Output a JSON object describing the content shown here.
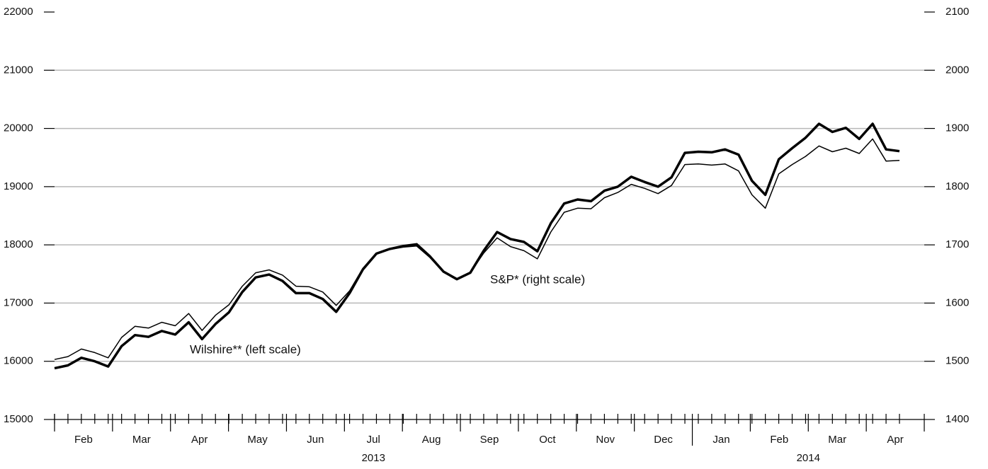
{
  "chart_data": {
    "type": "line",
    "categories": [
      null,
      null,
      null,
      null,
      null,
      null,
      null,
      null,
      null,
      null,
      null,
      null,
      null,
      null,
      null,
      null,
      null,
      null,
      null,
      null,
      null,
      null,
      null,
      null,
      null,
      null,
      null,
      null,
      null,
      null,
      null,
      null,
      null,
      null,
      null,
      null,
      null,
      null,
      null,
      null,
      null,
      null,
      null,
      null,
      null,
      null,
      null,
      null,
      null,
      null,
      null,
      null,
      null,
      null,
      null,
      null,
      null,
      null,
      null,
      null,
      null,
      null,
      null,
      null
    ],
    "months": [
      "Feb",
      "Mar",
      "Apr",
      "May",
      "Jun",
      "Jul",
      "Aug",
      "Sep",
      "Oct",
      "Nov",
      "Dec",
      "Jan",
      "Feb",
      "Mar",
      "Apr"
    ],
    "years": [
      "2013",
      "2014"
    ],
    "series": [
      {
        "name": "Wilshire** (left scale)",
        "color": "#000000",
        "axis": "y",
        "values": [
          15880,
          15930,
          16060,
          16000,
          15910,
          16260,
          16450,
          16420,
          16520,
          16460,
          16670,
          16380,
          16640,
          16840,
          17190,
          17440,
          17490,
          17380,
          17170,
          17170,
          17070,
          16850,
          17170,
          17580,
          17850,
          17930,
          17980,
          18010,
          17800,
          17540,
          17410,
          17520,
          17900,
          18220,
          18100,
          18050,
          17890,
          18370,
          18710,
          18780,
          18750,
          18930,
          19000,
          19170,
          19080,
          19000,
          19160,
          19580,
          19600,
          19590,
          19640,
          19550,
          19100,
          18860,
          19470,
          19660,
          19840,
          20080,
          19940,
          20010,
          19820,
          20080,
          19640,
          19610
        ]
      },
      {
        "name": "S&P* (right scale)",
        "color": "#000000",
        "axis": "y2",
        "values": [
          1503,
          1508,
          1521,
          1515,
          1506,
          1541,
          1560,
          1557,
          1567,
          1561,
          1582,
          1553,
          1579,
          1597,
          1629,
          1652,
          1657,
          1648,
          1629,
          1628,
          1619,
          1596,
          1621,
          1660,
          1685,
          1692,
          1696,
          1698,
          1678,
          1653,
          1641,
          1652,
          1686,
          1712,
          1697,
          1690,
          1676,
          1722,
          1756,
          1763,
          1762,
          1781,
          1790,
          1804,
          1797,
          1788,
          1802,
          1838,
          1839,
          1837,
          1839,
          1827,
          1786,
          1763,
          1822,
          1838,
          1852,
          1870,
          1860,
          1866,
          1857,
          1882,
          1844,
          1845
        ]
      }
    ],
    "ylim": [
      15000,
      22000
    ],
    "yticks": [
      15000,
      16000,
      17000,
      18000,
      19000,
      20000,
      21000,
      22000
    ],
    "y2lim": [
      1400,
      2100
    ],
    "y2ticks": [
      1400,
      1500,
      1600,
      1700,
      1800,
      1900,
      2000,
      2100
    ],
    "grid": true
  }
}
